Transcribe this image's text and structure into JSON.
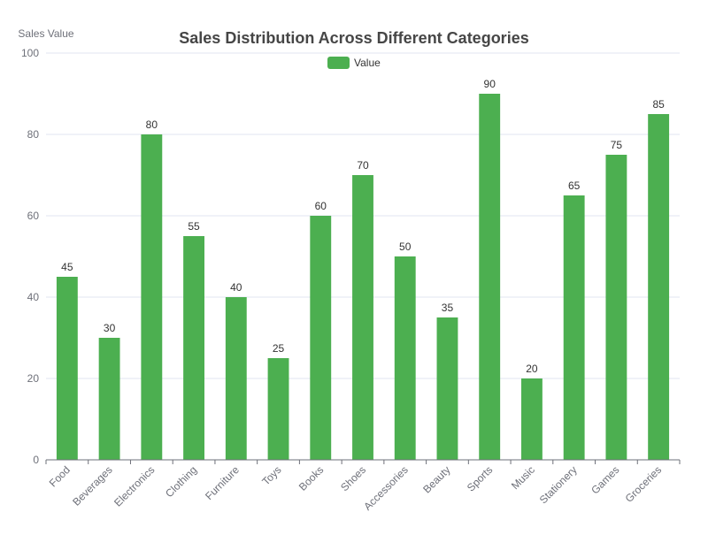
{
  "chart_data": {
    "type": "bar",
    "title": "Sales Distribution Across Different Categories",
    "xlabel": "",
    "ylabel": "Sales Value",
    "ylim": [
      0,
      100
    ],
    "yticks": [
      0,
      20,
      40,
      60,
      80,
      100
    ],
    "categories": [
      "Food",
      "Beverages",
      "Electronics",
      "Clothing",
      "Furniture",
      "Toys",
      "Books",
      "Shoes",
      "Accessories",
      "Beauty",
      "Sports",
      "Music",
      "Stationery",
      "Games",
      "Groceries"
    ],
    "series": [
      {
        "name": "Value",
        "values": [
          45,
          30,
          80,
          55,
          40,
          25,
          60,
          70,
          50,
          35,
          90,
          20,
          65,
          75,
          85
        ],
        "color": "#4caf50"
      }
    ],
    "legend_position": "top-center",
    "grid": true,
    "data_labels": true
  }
}
